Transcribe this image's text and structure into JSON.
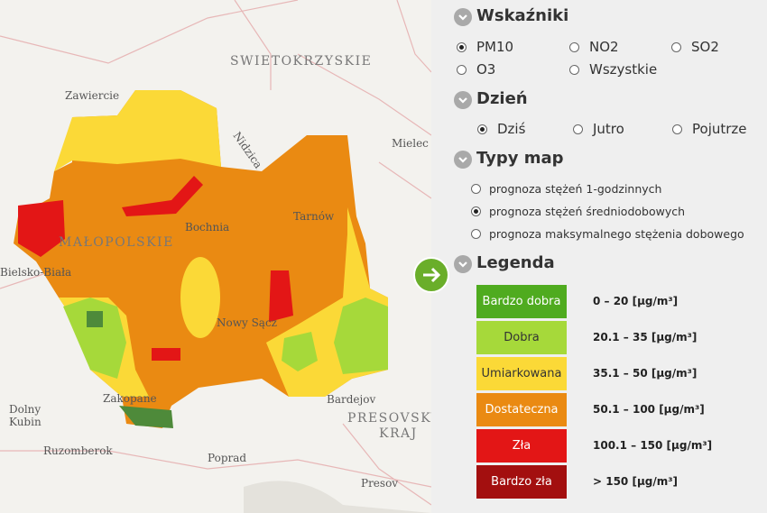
{
  "map": {
    "labels": [
      {
        "text": "SWIETOKRZYSKIE"
      },
      {
        "text": "Zawiercie"
      },
      {
        "text": "Mielec"
      },
      {
        "text": "MAŁOPOLSKIE"
      },
      {
        "text": "Bielsko-Biała"
      },
      {
        "text": "Tarnów"
      },
      {
        "text": "Bochnia"
      },
      {
        "text": "Nowy Sącz"
      },
      {
        "text": "Bardejov"
      },
      {
        "text": "PRESOVSKÝ"
      },
      {
        "text": "KRAJ"
      },
      {
        "text": "Dolny"
      },
      {
        "text": "Kubin"
      },
      {
        "text": "Ruzomberok"
      },
      {
        "text": "Poprad"
      },
      {
        "text": "Presov"
      },
      {
        "text": "Zakopane"
      },
      {
        "text": "Nidzica"
      }
    ]
  },
  "panel": {
    "sections": [
      {
        "title": "Wskaźniki",
        "options": [
          {
            "label": "PM10",
            "checked": true
          },
          {
            "label": "NO2",
            "checked": false
          },
          {
            "label": "SO2",
            "checked": false
          },
          {
            "label": "O3",
            "checked": false
          },
          {
            "label": "Wszystkie",
            "checked": false
          }
        ]
      },
      {
        "title": "Dzień",
        "options": [
          {
            "label": "Dziś",
            "checked": true
          },
          {
            "label": "Jutro",
            "checked": false
          },
          {
            "label": "Pojutrze",
            "checked": false
          }
        ]
      },
      {
        "title": "Typy map",
        "options": [
          {
            "label": "prognoza stężeń 1-godzinnych",
            "checked": false
          },
          {
            "label": "prognoza stężeń średniodobowych",
            "checked": true
          },
          {
            "label": "prognoza maksymalnego stężenia dobowego",
            "checked": false
          }
        ]
      },
      {
        "title": "Legenda",
        "items": [
          {
            "label": "Bardzo dobra",
            "range": "0 – 20 [μg/m³]",
            "color": "#4fab1f",
            "text_color": "#ffffff"
          },
          {
            "label": "Dobra",
            "range": "20.1 – 35 [μg/m³]",
            "color": "#a6d93a",
            "text_color": "#333333"
          },
          {
            "label": "Umiarkowana",
            "range": "35.1 – 50 [μg/m³]",
            "color": "#fbd937",
            "text_color": "#333333"
          },
          {
            "label": "Dostateczna",
            "range": "50.1 – 100 [μg/m³]",
            "color": "#ea8a12",
            "text_color": "#ffffff"
          },
          {
            "label": "Zła",
            "range": "100.1 – 150 [μg/m³]",
            "color": "#e31616",
            "text_color": "#ffffff"
          },
          {
            "label": "Bardzo zła",
            "range": "> 150 [μg/m³]",
            "color": "#a30f0f",
            "text_color": "#ffffff"
          }
        ]
      }
    ]
  }
}
